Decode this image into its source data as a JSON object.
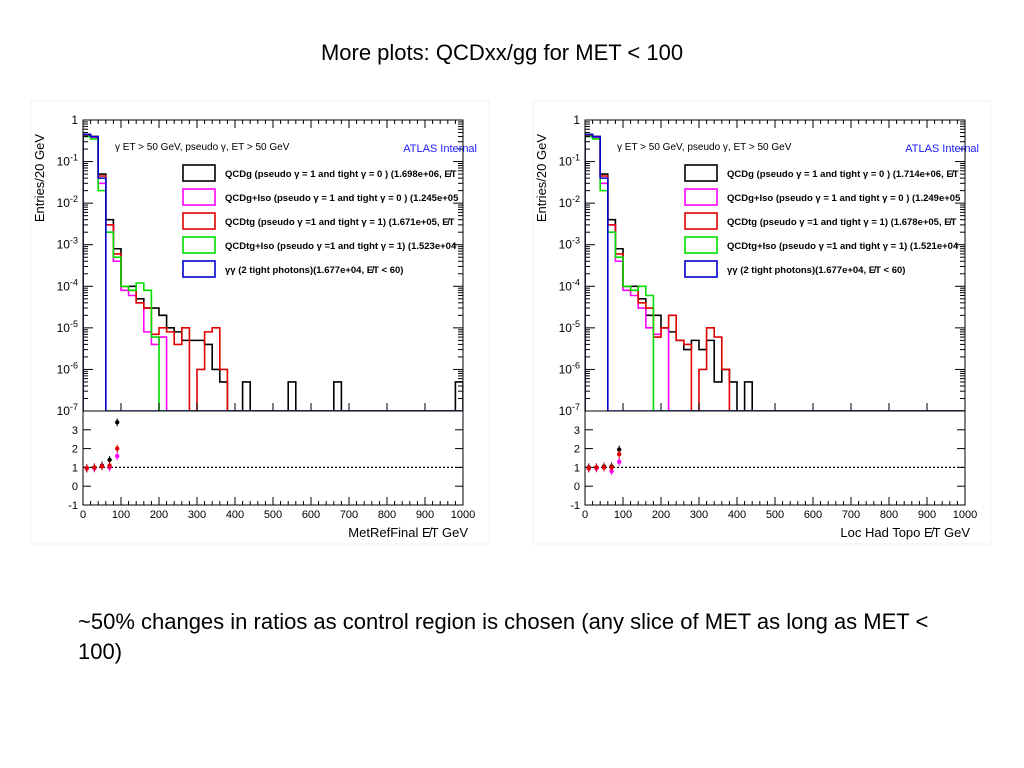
{
  "slide": {
    "title": "More plots: QCDxx/gg for MET < 100",
    "caption": "~50% changes in ratios as control region is chosen (any slice of MET as long as MET < 100)"
  },
  "colors": {
    "QCDg": "#000000",
    "QCDg+Iso": "#ff00ff",
    "QCDtg": "#e00000",
    "QCDtg+Iso": "#00dd00",
    "gg": "#0000cc",
    "atlas": "#1a1aff"
  },
  "chart_data": [
    {
      "type": "histogram",
      "xlabel": "MetRefFinal  E̸T GeV",
      "ylabel": "Entries/20 GeV",
      "header": "γ ET > 50 GeV, pseudo γ, ET > 50 GeV",
      "atlas_label": "ATLAS Internal",
      "log_y": true,
      "xlim": [
        0,
        1000
      ],
      "ylim": [
        1e-07,
        1
      ],
      "y_ticks": [
        "1",
        "10-1",
        "10-2",
        "10-3",
        "10-4",
        "10-5",
        "10-6",
        "10-7"
      ],
      "x_ticks": [
        "0",
        "100",
        "200",
        "300",
        "400",
        "500",
        "600",
        "700",
        "800",
        "900",
        "1000"
      ],
      "bin_width": 20,
      "series": [
        {
          "name": "QCDg (pseudo γ = 1 and tight γ = 0 ) (1.698e+06, E̸T",
          "color_key": "QCDg",
          "values": [
            0.45,
            0.4,
            0.05,
            0.004,
            0.0008,
            0.0001,
            0.0001,
            5e-05,
            3e-05,
            3e-05,
            2e-05,
            1e-05,
            8e-06,
            5e-06,
            5e-06,
            5e-06,
            4e-06,
            1e-06,
            5e-07,
            0,
            0,
            5e-07,
            0,
            0,
            0,
            0,
            0,
            5e-07,
            0,
            0,
            0,
            0,
            0,
            5e-07,
            0,
            0,
            0,
            0,
            0,
            0,
            0,
            0,
            0,
            0,
            0,
            0,
            0,
            0,
            0,
            5e-07
          ]
        },
        {
          "name": "QCDg+Iso (pseudo γ = 1 and tight γ = 0 ) (1.245e+05",
          "color_key": "QCDg+Iso",
          "values": [
            0.42,
            0.38,
            0.03,
            0.003,
            0.0004,
            8e-05,
            6e-05,
            4e-05,
            8e-06,
            4e-06,
            6e-06,
            0,
            0,
            0,
            0,
            0,
            0,
            0,
            0,
            0,
            0,
            0,
            0,
            0,
            0,
            0,
            0,
            0,
            0,
            0,
            0,
            0,
            0,
            0,
            0,
            0,
            0,
            0,
            0,
            0,
            0,
            0,
            0,
            0,
            0,
            0,
            0,
            0,
            0,
            0
          ]
        },
        {
          "name": "QCDtg (pseudo γ =1 and tight γ = 1)  (1.671e+05, E̸T",
          "color_key": "QCDtg",
          "values": [
            0.42,
            0.4,
            0.045,
            0.003,
            0.0006,
            0.0001,
            8e-05,
            4e-05,
            3e-05,
            7e-06,
            1e-05,
            8e-06,
            4e-06,
            1e-05,
            0,
            1e-06,
            8e-06,
            1e-05,
            1e-06,
            0,
            0,
            0,
            0,
            0,
            0,
            0,
            0,
            0,
            0,
            0,
            0,
            0,
            0,
            0,
            0,
            0,
            0,
            0,
            0,
            0,
            0,
            0,
            0,
            0,
            0,
            0,
            0,
            0,
            0,
            0
          ]
        },
        {
          "name": "QCDtg+Iso (pseudo γ =1 and tight γ = 1) (1.523e+04",
          "color_key": "QCDtg+Iso",
          "values": [
            0.4,
            0.35,
            0.02,
            0.002,
            0.0005,
            0.0001,
            8e-05,
            0.00012,
            8e-05,
            6e-06,
            0,
            0,
            0,
            0,
            0,
            0,
            0,
            0,
            0,
            0,
            0,
            0,
            0,
            0,
            0,
            0,
            0,
            0,
            0,
            0,
            0,
            0,
            0,
            0,
            0,
            0,
            0,
            0,
            0,
            0,
            0,
            0,
            0,
            0,
            0,
            0,
            0,
            0,
            0,
            0
          ]
        },
        {
          "name": "γγ (2 tight photons)(1.677e+04, E̸T < 60)",
          "color_key": "gg",
          "values": [
            0.45,
            0.4,
            0.04,
            0,
            0,
            0,
            0,
            0,
            0,
            0,
            0,
            0,
            0,
            0,
            0,
            0,
            0,
            0,
            0,
            0,
            0,
            0,
            0,
            0,
            0,
            0,
            0,
            0,
            0,
            0,
            0,
            0,
            0,
            0,
            0,
            0,
            0,
            0,
            0,
            0,
            0,
            0,
            0,
            0,
            0,
            0,
            0,
            0,
            0,
            0
          ]
        }
      ],
      "ratio": {
        "ylim": [
          -1,
          4
        ],
        "y_ticks": [
          "3",
          "2",
          "1",
          "0",
          "-1"
        ],
        "reference_line": 1,
        "series": [
          {
            "color_key": "QCDg",
            "points": [
              [
                10,
                0.95
              ],
              [
                30,
                1.0
              ],
              [
                50,
                1.1
              ],
              [
                70,
                1.4
              ],
              [
                90,
                3.4
              ]
            ]
          },
          {
            "color_key": "QCDg+Iso",
            "points": [
              [
                10,
                0.95
              ],
              [
                30,
                0.95
              ],
              [
                50,
                1.05
              ],
              [
                70,
                1.0
              ],
              [
                90,
                1.6
              ]
            ]
          },
          {
            "color_key": "QCDtg",
            "points": [
              [
                10,
                0.95
              ],
              [
                30,
                1.0
              ],
              [
                50,
                1.05
              ],
              [
                70,
                1.1
              ],
              [
                90,
                2.0
              ]
            ]
          }
        ]
      }
    },
    {
      "type": "histogram",
      "xlabel": "Loc Had Topo  E̸T GeV",
      "ylabel": "Entries/20 GeV",
      "header": "γ ET > 50 GeV, pseudo γ, ET > 50 GeV",
      "atlas_label": "ATLAS Internal",
      "log_y": true,
      "xlim": [
        0,
        1000
      ],
      "ylim": [
        1e-07,
        1
      ],
      "y_ticks": [
        "1",
        "10-1",
        "10-2",
        "10-3",
        "10-4",
        "10-5",
        "10-6",
        "10-7"
      ],
      "x_ticks": [
        "0",
        "100",
        "200",
        "300",
        "400",
        "500",
        "600",
        "700",
        "800",
        "900",
        "1000"
      ],
      "bin_width": 20,
      "series": [
        {
          "name": "QCDg (pseudo γ = 1 and tight γ = 0 ) (1.714e+06, E̸T",
          "color_key": "QCDg",
          "values": [
            0.45,
            0.4,
            0.05,
            0.004,
            0.0008,
            0.0001,
            0.0001,
            5e-05,
            2e-05,
            2e-05,
            1e-05,
            8e-06,
            5e-06,
            3e-06,
            5e-06,
            3e-06,
            5e-06,
            5e-07,
            1e-06,
            5e-07,
            0,
            5e-07,
            0,
            0,
            0,
            0,
            0,
            0,
            0,
            0,
            0,
            0,
            0,
            0,
            0,
            0,
            0,
            0,
            0,
            0,
            0,
            0,
            0,
            0,
            0,
            0,
            0,
            0,
            0,
            0
          ]
        },
        {
          "name": "QCDg+Iso (pseudo γ = 1 and tight γ = 0 ) (1.249e+05",
          "color_key": "QCDg+Iso",
          "values": [
            0.42,
            0.38,
            0.03,
            0.003,
            0.0004,
            8e-05,
            6e-05,
            3e-05,
            1e-05,
            7e-06,
            1e-05,
            0,
            0,
            0,
            0,
            0,
            0,
            0,
            0,
            0,
            0,
            0,
            0,
            0,
            0,
            0,
            0,
            0,
            0,
            0,
            0,
            0,
            0,
            0,
            0,
            0,
            0,
            0,
            0,
            0,
            0,
            0,
            0,
            0,
            0,
            0,
            0,
            0,
            0,
            0
          ]
        },
        {
          "name": "QCDtg (pseudo γ =1 and tight γ = 1)  (1.678e+05, E̸T",
          "color_key": "QCDtg",
          "values": [
            0.42,
            0.4,
            0.045,
            0.003,
            0.0006,
            0.0001,
            8e-05,
            4e-05,
            3e-05,
            6e-06,
            1e-05,
            2e-05,
            5e-06,
            4e-06,
            0,
            1e-06,
            1e-05,
            6e-06,
            1e-06,
            0,
            0,
            0,
            0,
            0,
            0,
            0,
            0,
            0,
            0,
            0,
            0,
            0,
            0,
            0,
            0,
            0,
            0,
            0,
            0,
            0,
            0,
            0,
            0,
            0,
            0,
            0,
            0,
            0,
            0,
            0
          ]
        },
        {
          "name": "QCDtg+Iso (pseudo γ =1 and tight γ = 1) (1.521e+04",
          "color_key": "QCDtg+Iso",
          "values": [
            0.4,
            0.35,
            0.02,
            0.002,
            0.0005,
            0.0001,
            8e-05,
            0.0001,
            6e-05,
            0,
            0,
            0,
            0,
            0,
            0,
            0,
            0,
            0,
            0,
            0,
            0,
            0,
            0,
            0,
            0,
            0,
            0,
            0,
            0,
            0,
            0,
            0,
            0,
            0,
            0,
            0,
            0,
            0,
            0,
            0,
            0,
            0,
            0,
            0,
            0,
            0,
            0,
            0,
            0,
            0
          ]
        },
        {
          "name": "γγ (2 tight photons)(1.677e+04, E̸T < 60)",
          "color_key": "gg",
          "values": [
            0.45,
            0.4,
            0.04,
            0,
            0,
            0,
            0,
            0,
            0,
            0,
            0,
            0,
            0,
            0,
            0,
            0,
            0,
            0,
            0,
            0,
            0,
            0,
            0,
            0,
            0,
            0,
            0,
            0,
            0,
            0,
            0,
            0,
            0,
            0,
            0,
            0,
            0,
            0,
            0,
            0,
            0,
            0,
            0,
            0,
            0,
            0,
            0,
            0,
            0,
            0
          ]
        }
      ],
      "ratio": {
        "ylim": [
          -1,
          4
        ],
        "y_ticks": [
          "3",
          "2",
          "1",
          "0",
          "-1"
        ],
        "reference_line": 1,
        "series": [
          {
            "color_key": "QCDg",
            "points": [
              [
                10,
                1.0
              ],
              [
                30,
                1.0
              ],
              [
                50,
                1.05
              ],
              [
                70,
                1.05
              ],
              [
                90,
                1.95
              ]
            ]
          },
          {
            "color_key": "QCDg+Iso",
            "points": [
              [
                10,
                0.95
              ],
              [
                30,
                0.95
              ],
              [
                50,
                1.0
              ],
              [
                70,
                0.8
              ],
              [
                90,
                1.3
              ]
            ]
          },
          {
            "color_key": "QCDtg",
            "points": [
              [
                10,
                0.95
              ],
              [
                30,
                1.0
              ],
              [
                50,
                1.0
              ],
              [
                70,
                1.0
              ],
              [
                90,
                1.7
              ]
            ]
          }
        ]
      }
    }
  ]
}
